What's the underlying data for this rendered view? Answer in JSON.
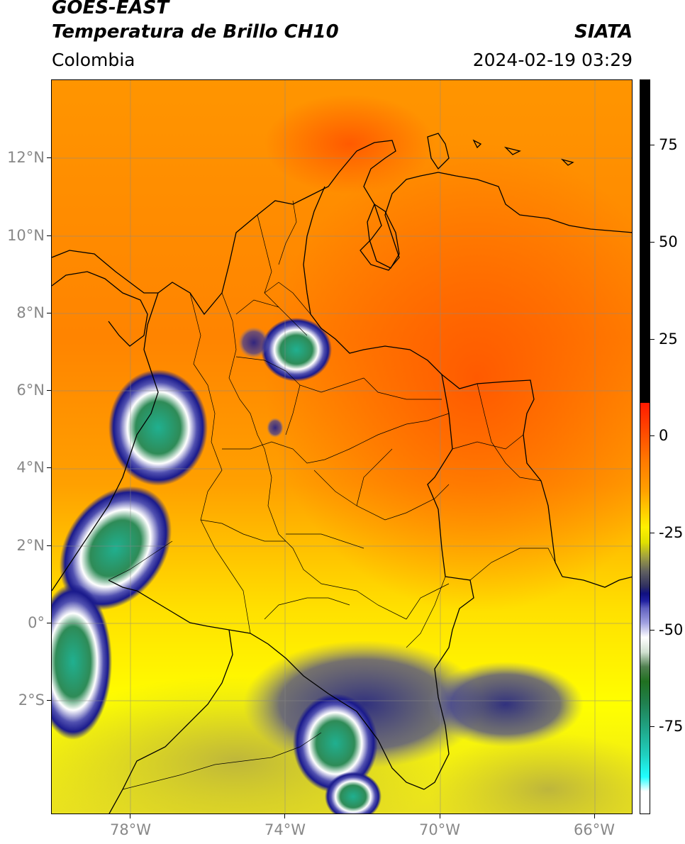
{
  "header": {
    "satellite": "GOES-EAST",
    "product": "Temperatura de Brillo CH10",
    "organization": "SIATA",
    "region": "Colombia",
    "datetime": "2024-02-19 03:29"
  },
  "map": {
    "lat_labels": [
      "12°N",
      "10°N",
      "8°N",
      "6°N",
      "4°N",
      "2°N",
      "0°",
      "2°S"
    ],
    "lon_labels": [
      "78°W",
      "74°W",
      "70°W",
      "66°W"
    ],
    "colors": {
      "warm": "#ff6a00",
      "mid": "#ffa000",
      "cool": "#ffff00",
      "olive": "#c8c030",
      "cloud_navy": "#1a1a8c",
      "cloud_white": "#ffffff",
      "cloud_green": "#2e8b57",
      "cloud_teal": "#20b2aa",
      "border": "#000000",
      "grid": "#888888"
    }
  },
  "colorbar": {
    "labels": [
      "75",
      "50",
      "25",
      "0",
      "-25",
      "-50",
      "-75"
    ]
  }
}
